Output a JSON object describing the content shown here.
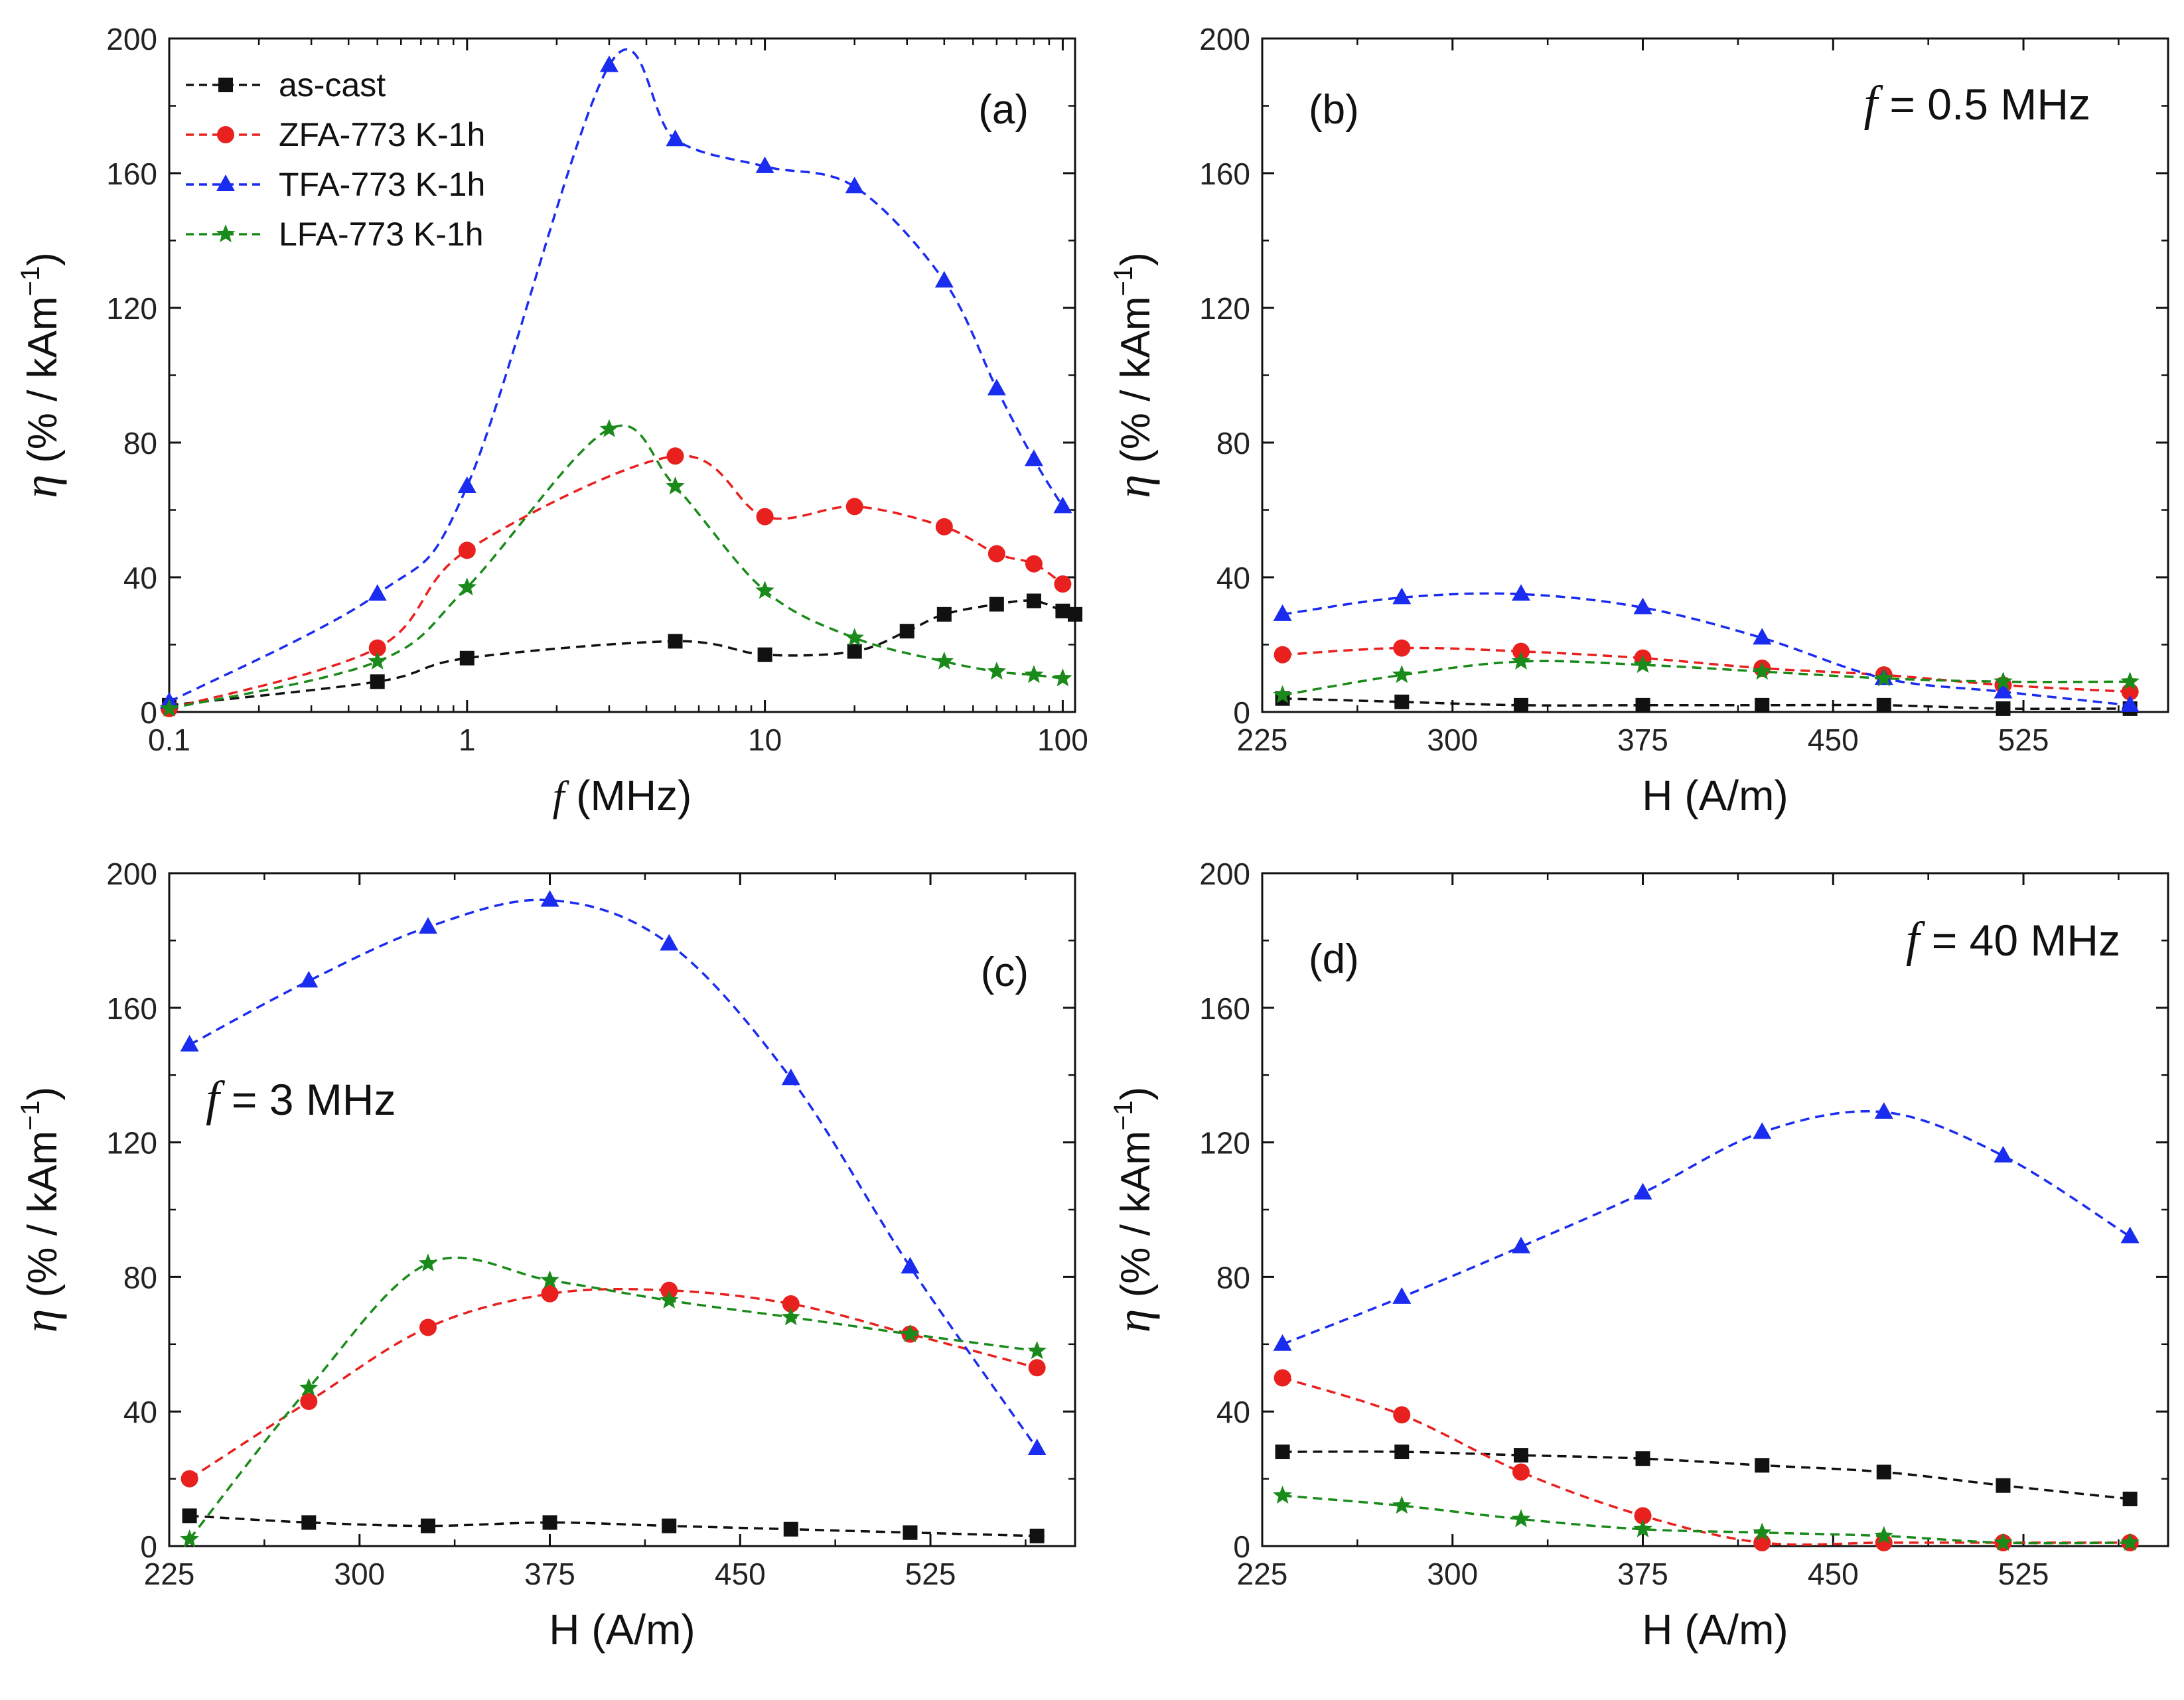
{
  "series_styles": {
    "as-cast": {
      "color": "#111111",
      "marker": "square"
    },
    "ZFA-773 K-1h": {
      "color": "#e8201e",
      "marker": "circle"
    },
    "TFA-773 K-1h": {
      "color": "#1a2cf0",
      "marker": "triangle"
    },
    "LFA-773 K-1h": {
      "color": "#1a8a1a",
      "marker": "star"
    }
  },
  "legend": {
    "items": [
      "as-cast",
      "ZFA-773 K-1h",
      "TFA-773 K-1h",
      "LFA-773 K-1h"
    ]
  },
  "chart_data": [
    {
      "panel": "(a)",
      "type": "line",
      "xscale": "log",
      "annotation": "",
      "xlabel_var": "f",
      "xlabel_rest": " (MHz)",
      "ylabel_var": "η",
      "ylabel_rest": " (% / kAm",
      "ylabel_sup": "−1",
      "ylabel_close": ")",
      "xlim": [
        0.1,
        110
      ],
      "ylim": [
        0,
        200
      ],
      "xticks": [
        0.1,
        1,
        10,
        100
      ],
      "xtick_labels": [
        "0.1",
        "1",
        "10",
        "100"
      ],
      "yticks": [
        0,
        40,
        80,
        120,
        160,
        200
      ],
      "ytick_labels": [
        "0",
        "40",
        "80",
        "120",
        "160",
        "200"
      ],
      "series": [
        {
          "name": "as-cast",
          "x": [
            0.1,
            0.5,
            1,
            5,
            10,
            20,
            30,
            40,
            60,
            80,
            100,
            110
          ],
          "values": [
            2,
            9,
            16,
            21,
            17,
            18,
            24,
            29,
            32,
            33,
            30,
            29
          ]
        },
        {
          "name": "ZFA-773 K-1h",
          "x": [
            0.1,
            0.5,
            1,
            5,
            10,
            20,
            40,
            60,
            80,
            100
          ],
          "values": [
            1,
            19,
            48,
            76,
            58,
            61,
            55,
            47,
            44,
            38
          ]
        },
        {
          "name": "TFA-773 K-1h",
          "x": [
            0.1,
            0.5,
            1,
            3,
            5,
            10,
            20,
            40,
            60,
            80,
            100
          ],
          "values": [
            3,
            35,
            67,
            192,
            170,
            162,
            156,
            128,
            96,
            75,
            61
          ]
        },
        {
          "name": "LFA-773 K-1h",
          "x": [
            0.1,
            0.5,
            1,
            3,
            5,
            10,
            20,
            40,
            60,
            80,
            100
          ],
          "values": [
            1,
            15,
            37,
            84,
            67,
            36,
            22,
            15,
            12,
            11,
            10
          ]
        }
      ]
    },
    {
      "panel": "(b)",
      "type": "line",
      "xscale": "linear",
      "annotation_var": "f",
      "annotation": " = 0.5 MHz",
      "xlabel_var": "",
      "xlabel_rest": "H (A/m)",
      "ylabel_var": "η",
      "ylabel_rest": " (% / kAm",
      "ylabel_sup": "−1",
      "ylabel_close": ")",
      "xlim": [
        225,
        582
      ],
      "ylim": [
        0,
        200
      ],
      "xticks": [
        225,
        300,
        375,
        450,
        525
      ],
      "xtick_labels": [
        "225",
        "300",
        "375",
        "450",
        "525"
      ],
      "yticks": [
        0,
        40,
        80,
        120,
        160,
        200
      ],
      "ytick_labels": [
        "0",
        "40",
        "80",
        "120",
        "160",
        "200"
      ],
      "series": [
        {
          "name": "as-cast",
          "x": [
            233,
            280,
            327,
            375,
            422,
            470,
            517,
            567
          ],
          "values": [
            4,
            3,
            2,
            2,
            2,
            2,
            1,
            1
          ]
        },
        {
          "name": "ZFA-773 K-1h",
          "x": [
            233,
            280,
            327,
            375,
            422,
            470,
            517,
            567
          ],
          "values": [
            17,
            19,
            18,
            16,
            13,
            11,
            8,
            6
          ]
        },
        {
          "name": "TFA-773 K-1h",
          "x": [
            233,
            280,
            327,
            375,
            422,
            470,
            517,
            567
          ],
          "values": [
            29,
            34,
            35,
            31,
            22,
            10,
            6,
            2
          ]
        },
        {
          "name": "LFA-773 K-1h",
          "x": [
            233,
            280,
            327,
            375,
            422,
            470,
            517,
            567
          ],
          "values": [
            5,
            11,
            15,
            14,
            12,
            10,
            9,
            9
          ]
        }
      ]
    },
    {
      "panel": "(c)",
      "type": "line",
      "xscale": "linear",
      "annotation_var": "f",
      "annotation": " = 3 MHz",
      "xlabel_var": "",
      "xlabel_rest": "H (A/m)",
      "ylabel_var": "η",
      "ylabel_rest": " (% / kAm",
      "ylabel_sup": "−1",
      "ylabel_close": ")",
      "xlim": [
        225,
        582
      ],
      "ylim": [
        0,
        200
      ],
      "xticks": [
        225,
        300,
        375,
        450,
        525
      ],
      "xtick_labels": [
        "225",
        "300",
        "375",
        "450",
        "525"
      ],
      "yticks": [
        0,
        40,
        80,
        120,
        160,
        200
      ],
      "ytick_labels": [
        "0",
        "40",
        "80",
        "120",
        "160",
        "200"
      ],
      "series": [
        {
          "name": "as-cast",
          "x": [
            233,
            280,
            327,
            375,
            422,
            470,
            517,
            567
          ],
          "values": [
            9,
            7,
            6,
            7,
            6,
            5,
            4,
            3
          ]
        },
        {
          "name": "ZFA-773 K-1h",
          "x": [
            233,
            280,
            327,
            375,
            422,
            470,
            517,
            567
          ],
          "values": [
            20,
            43,
            65,
            75,
            76,
            72,
            63,
            53
          ]
        },
        {
          "name": "TFA-773 K-1h",
          "x": [
            233,
            280,
            327,
            375,
            422,
            470,
            517,
            567
          ],
          "values": [
            149,
            168,
            184,
            192,
            179,
            139,
            83,
            29
          ]
        },
        {
          "name": "LFA-773 K-1h",
          "x": [
            233,
            280,
            327,
            375,
            422,
            470,
            517,
            567
          ],
          "values": [
            2,
            47,
            84,
            79,
            73,
            68,
            63,
            58
          ]
        }
      ]
    },
    {
      "panel": "(d)",
      "type": "line",
      "xscale": "linear",
      "annotation_var": "f",
      "annotation": " = 40 MHz",
      "xlabel_var": "",
      "xlabel_rest": "H (A/m)",
      "ylabel_var": "η",
      "ylabel_rest": " (% / kAm",
      "ylabel_sup": "−1",
      "ylabel_close": ")",
      "xlim": [
        225,
        582
      ],
      "ylim": [
        0,
        200
      ],
      "xticks": [
        225,
        300,
        375,
        450,
        525
      ],
      "xtick_labels": [
        "225",
        "300",
        "375",
        "450",
        "525"
      ],
      "yticks": [
        0,
        40,
        80,
        120,
        160,
        200
      ],
      "ytick_labels": [
        "0",
        "40",
        "80",
        "120",
        "160",
        "200"
      ],
      "series": [
        {
          "name": "as-cast",
          "x": [
            233,
            280,
            327,
            375,
            422,
            470,
            517,
            567
          ],
          "values": [
            28,
            28,
            27,
            26,
            24,
            22,
            18,
            14
          ]
        },
        {
          "name": "ZFA-773 K-1h",
          "x": [
            233,
            280,
            327,
            375,
            422,
            470,
            517,
            567
          ],
          "values": [
            50,
            39,
            22,
            9,
            1,
            1,
            1,
            1
          ]
        },
        {
          "name": "TFA-773 K-1h",
          "x": [
            233,
            280,
            327,
            375,
            422,
            470,
            517,
            567
          ],
          "values": [
            60,
            74,
            89,
            105,
            123,
            129,
            116,
            92
          ]
        },
        {
          "name": "LFA-773 K-1h",
          "x": [
            233,
            280,
            327,
            375,
            422,
            470,
            517,
            567
          ],
          "values": [
            15,
            12,
            8,
            5,
            4,
            3,
            1,
            1
          ]
        }
      ]
    }
  ]
}
